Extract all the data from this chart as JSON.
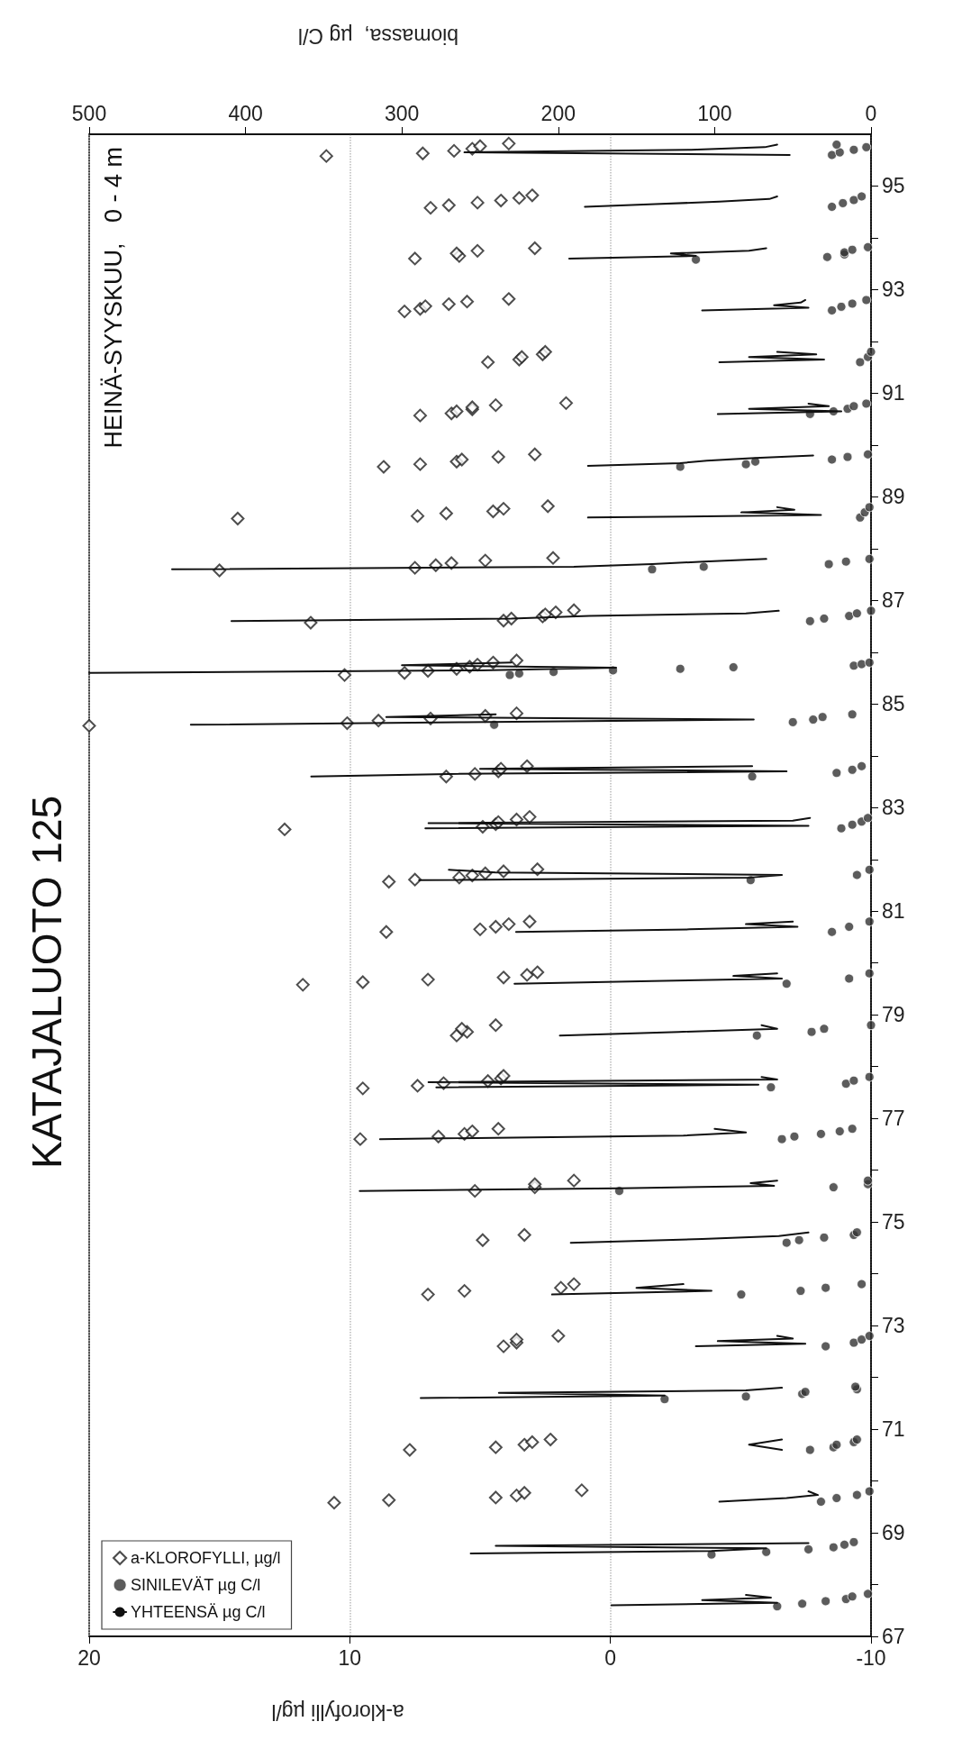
{
  "chart_data": {
    "type": "scatter",
    "title": "KATAJALUOTO 125",
    "subtitle": "HEINÄ-SYYSKUU,   0 - 4 m",
    "xlabel": "a-klorofylli µg/l",
    "x2label": "biomassa,  µg C/l",
    "xlim": [
      20,
      -10
    ],
    "xticks": [
      20,
      10,
      0,
      -10
    ],
    "x2lim": [
      500,
      0
    ],
    "x2ticks": [
      500,
      400,
      300,
      200,
      100,
      0
    ],
    "ylim": [
      67,
      96
    ],
    "yticks": [
      67,
      {
        "value": 68,
        "label": null
      },
      69,
      {
        "value": 70,
        "label": null
      },
      71,
      {
        "value": 72,
        "label": null
      },
      73,
      {
        "value": 74,
        "label": null
      },
      75,
      {
        "value": 76,
        "label": null
      },
      77,
      {
        "value": 78,
        "label": null
      },
      79,
      {
        "value": 80,
        "label": null
      },
      81,
      {
        "value": 82,
        "label": null
      },
      83,
      {
        "value": 84,
        "label": null
      },
      85,
      {
        "value": 86,
        "label": null
      },
      87,
      {
        "value": 88,
        "label": null
      },
      89,
      {
        "value": 90,
        "label": null
      },
      91,
      {
        "value": 92,
        "label": null
      },
      93,
      {
        "value": 94,
        "label": null
      },
      95
    ],
    "grid": "x",
    "legend": "bottom left",
    "series": [
      {
        "name": "a-KLOROFYLLI, µg/l",
        "type": "scatter",
        "marker": "diamond",
        "color": "#222222",
        "values": [
          69.58,
          69.63,
          69.68,
          69.72,
          69.77,
          69.82,
          70.6,
          70.65,
          70.7,
          70.75,
          70.8,
          72.6,
          72.67,
          72.73,
          72.8,
          73.6,
          73.67,
          73.73,
          73.8,
          74.65,
          74.75,
          75.6,
          75.67,
          75.73,
          75.8,
          76.6,
          76.65,
          76.7,
          76.75,
          76.8,
          77.58,
          77.63,
          77.68,
          77.72,
          77.77,
          77.82,
          78.6,
          78.67,
          78.73,
          78.8,
          79.58,
          79.63,
          79.68,
          79.72,
          79.77,
          79.82,
          80.6,
          80.65,
          80.7,
          80.75,
          80.8,
          81.57,
          81.61,
          81.65,
          81.69,
          81.73,
          81.77,
          81.81,
          82.58,
          82.63,
          82.68,
          82.72,
          82.77,
          82.82,
          83.6,
          83.65,
          83.7,
          83.75,
          83.8,
          84.58,
          84.63,
          84.68,
          84.72,
          84.77,
          84.82,
          85.56,
          85.6,
          85.64,
          85.68,
          85.72,
          85.76,
          85.8,
          85.84,
          86.57,
          86.61,
          86.65,
          86.69,
          86.73,
          86.77,
          86.81,
          87.58,
          87.63,
          87.68,
          87.72,
          87.77,
          87.82,
          88.58,
          88.63,
          88.68,
          88.72,
          88.77,
          88.82,
          89.58,
          89.63,
          89.68,
          89.72,
          89.77,
          89.82,
          90.57,
          90.61,
          90.65,
          90.69,
          90.73,
          90.77,
          90.81,
          91.6,
          91.65,
          91.7,
          91.75,
          91.8,
          92.58,
          92.63,
          92.68,
          92.72,
          92.77,
          92.82,
          93.6,
          93.65,
          93.7,
          93.75,
          93.8,
          94.58,
          94.63,
          94.68,
          94.72,
          94.77,
          94.82,
          95.58,
          95.63,
          95.68,
          95.72,
          95.77,
          95.82
        ],
        "x": [
          10.6,
          8.5,
          4.4,
          3.6,
          3.3,
          1.1,
          7.7,
          4.4,
          3.3,
          3.0,
          2.3,
          4.1,
          3.6,
          3.6,
          2.0,
          7.0,
          5.6,
          1.9,
          1.4,
          4.9,
          3.3,
          5.2,
          2.9,
          2.9,
          1.4,
          9.6,
          6.6,
          5.6,
          5.3,
          4.3,
          9.5,
          7.4,
          6.4,
          4.7,
          4.2,
          4.1,
          5.9,
          5.5,
          5.7,
          4.4,
          11.8,
          9.5,
          7.0,
          4.1,
          3.2,
          2.8,
          8.6,
          5.0,
          4.4,
          3.9,
          3.1,
          8.5,
          7.5,
          5.8,
          5.3,
          4.8,
          4.1,
          2.8,
          12.5,
          4.9,
          4.4,
          4.3,
          3.6,
          3.1,
          6.3,
          5.2,
          4.3,
          4.2,
          3.2,
          20.0,
          10.1,
          8.9,
          6.9,
          4.8,
          3.6,
          10.2,
          7.9,
          7.0,
          5.9,
          5.4,
          5.1,
          4.5,
          3.6,
          11.5,
          4.1,
          3.8,
          2.6,
          2.5,
          2.1,
          1.4,
          15.0,
          7.5,
          6.7,
          6.1,
          4.8,
          2.2,
          14.3,
          7.4,
          6.3,
          4.5,
          4.1,
          2.4,
          8.7,
          7.3,
          5.9,
          5.7,
          4.3,
          2.9,
          7.3,
          6.1,
          5.9,
          5.3,
          5.3,
          4.4,
          1.7,
          4.7,
          3.5,
          3.4,
          2.6,
          2.5,
          7.9,
          7.3,
          7.1,
          6.2,
          5.5,
          3.9,
          7.5,
          5.8,
          5.9,
          5.1,
          2.9,
          6.9,
          6.2,
          5.1,
          4.2,
          3.5,
          3.0,
          10.9,
          7.2,
          6.0,
          5.3,
          5.0,
          3.9
        ]
      },
      {
        "name": "SINILEVÄT µg C/l",
        "type": "scatter",
        "marker": "circle",
        "axis": "x2",
        "color": "#333333",
        "values": [
          67.58,
          67.63,
          67.68,
          67.72,
          67.77,
          67.82,
          68.58,
          68.63,
          68.68,
          68.72,
          68.77,
          68.82,
          69.6,
          69.67,
          69.73,
          69.8,
          70.6,
          70.65,
          70.7,
          70.75,
          70.8,
          71.58,
          71.63,
          71.68,
          71.72,
          71.77,
          71.82,
          72.6,
          72.67,
          72.73,
          72.8,
          73.6,
          73.67,
          73.73,
          73.8,
          74.6,
          74.65,
          74.7,
          74.75,
          74.8,
          75.6,
          75.67,
          75.73,
          75.8,
          76.6,
          76.65,
          76.7,
          76.75,
          76.8,
          77.6,
          77.67,
          77.73,
          77.8,
          78.6,
          78.67,
          78.73,
          78.8,
          79.6,
          79.7,
          79.8,
          80.6,
          80.7,
          80.8,
          81.6,
          81.7,
          81.8,
          82.6,
          82.67,
          82.73,
          82.8,
          83.6,
          83.67,
          83.73,
          83.8,
          84.6,
          84.65,
          84.7,
          84.75,
          84.8,
          85.56,
          85.59,
          85.62,
          85.65,
          85.68,
          85.71,
          85.74,
          85.77,
          85.8,
          86.6,
          86.65,
          86.7,
          86.75,
          86.8,
          87.6,
          87.65,
          87.7,
          87.75,
          87.8,
          88.6,
          88.7,
          88.8,
          89.58,
          89.63,
          89.68,
          89.72,
          89.77,
          89.82,
          90.6,
          90.65,
          90.7,
          90.75,
          90.8,
          91.6,
          91.7,
          91.8,
          92.6,
          92.67,
          92.73,
          92.8,
          93.58,
          93.63,
          93.68,
          93.72,
          93.77,
          93.82,
          94.6,
          94.67,
          94.73,
          94.8,
          95.6,
          95.65,
          95.7,
          95.75,
          95.8
        ],
        "x": [
          60,
          44,
          29,
          16,
          12,
          2,
          102,
          67,
          40,
          24,
          17,
          11,
          32,
          22,
          9,
          1,
          39,
          24,
          22,
          11,
          9,
          132,
          80,
          44,
          42,
          9,
          10,
          29,
          11,
          6,
          1,
          83,
          45,
          29,
          6,
          54,
          46,
          30,
          11,
          9,
          161,
          24,
          2,
          2,
          57,
          49,
          32,
          20,
          12,
          64,
          16,
          11,
          1,
          73,
          38,
          30,
          0,
          54,
          14,
          1,
          25,
          14,
          1,
          77,
          9,
          1,
          19,
          12,
          6,
          2,
          76,
          22,
          12,
          6,
          241,
          50,
          37,
          31,
          12,
          231,
          225,
          203,
          165,
          122,
          88,
          11,
          6,
          1,
          39,
          30,
          14,
          9,
          0,
          140,
          107,
          27,
          16,
          1,
          7,
          4,
          1,
          122,
          80,
          74,
          25,
          15,
          2,
          39,
          24,
          15,
          11,
          3,
          7,
          2,
          0,
          25,
          19,
          12,
          3,
          112,
          28,
          17,
          17,
          12,
          2,
          25,
          18,
          11,
          6,
          25,
          20,
          11,
          3,
          22
        ]
      },
      {
        "name": "YHTEENSÄ µg C/l",
        "type": "line",
        "marker": "none",
        "line_style": "solid",
        "axis": "x2",
        "color": "#111111",
        "values": [
          67.6,
          67.65,
          67.7,
          67.75,
          67.8,
          null,
          68.6,
          68.65,
          68.7,
          68.75,
          68.8,
          null,
          69.6,
          69.67,
          69.73,
          69.8,
          null,
          70.6,
          70.7,
          70.8,
          null,
          71.6,
          71.65,
          71.7,
          71.75,
          71.8,
          null,
          72.6,
          72.65,
          72.7,
          72.75,
          72.8,
          null,
          73.6,
          73.67,
          73.73,
          73.8,
          null,
          74.6,
          74.67,
          74.73,
          74.8,
          null,
          75.6,
          75.65,
          75.7,
          75.75,
          75.8,
          null,
          76.6,
          76.67,
          76.73,
          76.8,
          null,
          77.6,
          77.65,
          77.7,
          77.75,
          77.8,
          null,
          78.6,
          78.67,
          78.73,
          78.8,
          null,
          79.6,
          79.65,
          79.7,
          79.75,
          79.8,
          null,
          80.6,
          80.65,
          80.7,
          80.75,
          80.8,
          null,
          81.6,
          81.65,
          81.7,
          81.75,
          81.8,
          null,
          82.6,
          82.65,
          82.7,
          82.75,
          82.8,
          null,
          83.6,
          83.65,
          83.7,
          83.75,
          83.8,
          null,
          84.6,
          84.65,
          84.7,
          84.75,
          84.8,
          null,
          85.6,
          85.65,
          85.7,
          85.75,
          85.8,
          null,
          86.6,
          86.65,
          86.7,
          86.75,
          86.8,
          null,
          87.6,
          87.65,
          87.7,
          87.75,
          87.8,
          null,
          88.6,
          88.65,
          88.7,
          88.75,
          88.8,
          null,
          89.6,
          89.65,
          89.7,
          89.75,
          89.8,
          null,
          90.6,
          90.65,
          90.7,
          90.75,
          90.8,
          null,
          91.6,
          91.65,
          91.7,
          91.75,
          91.8,
          null,
          92.6,
          92.65,
          92.7,
          92.75,
          92.8,
          null,
          93.6,
          93.65,
          93.7,
          93.75,
          93.8,
          null,
          94.6,
          94.65,
          94.7,
          94.75,
          94.8,
          null,
          95.6,
          95.65,
          95.7,
          95.75,
          95.8
        ],
        "x": [
          166,
          60,
          108,
          64,
          80,
          null,
          256,
          102,
          67,
          240,
          40,
          null,
          97,
          54,
          34,
          40,
          null,
          57,
          78,
          57,
          null,
          288,
          132,
          238,
          80,
          57,
          null,
          112,
          42,
          98,
          50,
          60,
          null,
          204,
          102,
          150,
          120,
          null,
          192,
          108,
          59,
          40,
          null,
          327,
          161,
          62,
          77,
          60,
          null,
          314,
          120,
          80,
          100,
          null,
          278,
          72,
          283,
          60,
          70,
          null,
          199,
          123,
          60,
          70,
          null,
          228,
          140,
          57,
          88,
          60,
          null,
          227,
          116,
          47,
          80,
          50,
          null,
          289,
          77,
          57,
          240,
          270,
          null,
          285,
          40,
          283,
          50,
          39,
          null,
          358,
          270,
          54,
          250,
          76,
          null,
          435,
          260,
          75,
          310,
          240,
          null,
          500,
          250,
          163,
          300,
          230,
          null,
          409,
          230,
          180,
          80,
          59,
          null,
          447,
          190,
          140,
          107,
          67,
          null,
          181,
          32,
          83,
          49,
          60,
          null,
          181,
          122,
          105,
          74,
          37,
          null,
          98,
          19,
          78,
          27,
          40,
          null,
          97,
          30,
          78,
          35,
          60,
          null,
          108,
          40,
          62,
          45,
          42,
          null,
          193,
          112,
          128,
          78,
          67,
          null,
          183,
          138,
          97,
          65,
          60,
          null,
          52,
          260,
          115,
          68,
          60
        ]
      }
    ]
  }
}
